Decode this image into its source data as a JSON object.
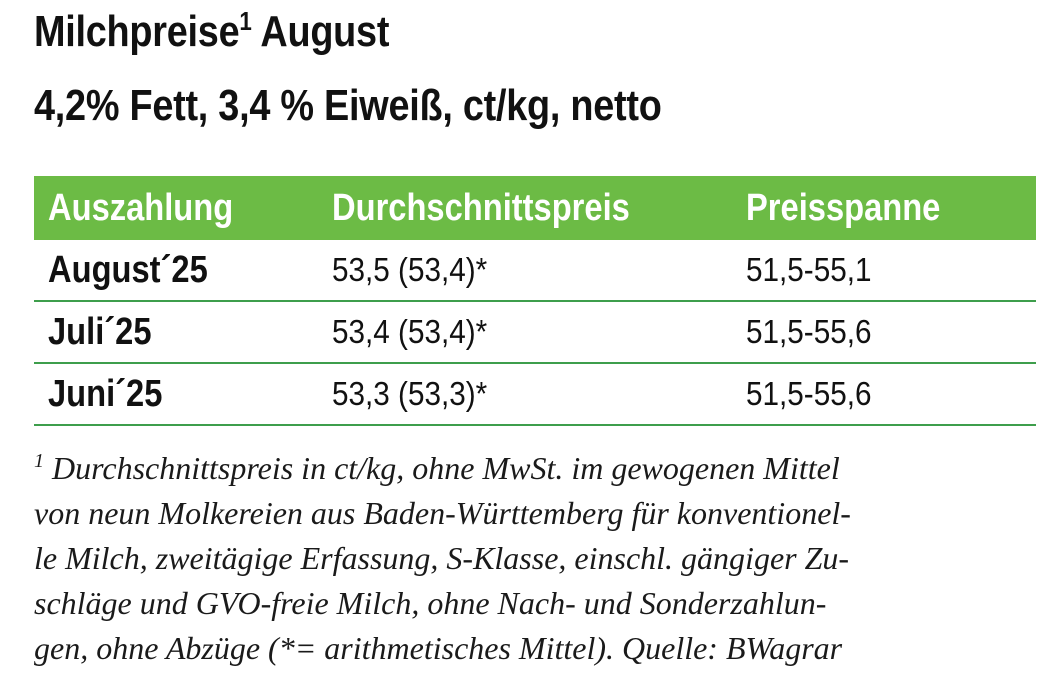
{
  "heading": {
    "line1_main": "Milchpreise",
    "line1_sup": "1",
    "line1_rest": " August",
    "line2": "4,2% Fett, 3,4 % Eiweiß, ct/kg, netto"
  },
  "table": {
    "headers": [
      "Auszahlung",
      "Durchschnittspreis",
      "Preisspanne"
    ],
    "rows": [
      {
        "period": "August´25",
        "average": "53,5 (53,4)*",
        "range": "51,5-55,1"
      },
      {
        "period": "Juli´25",
        "average": "53,4 (53,4)*",
        "range": "51,5-55,6"
      },
      {
        "period": "Juni´25",
        "average": "53,3 (53,3)*",
        "range": "51,5-55,6"
      }
    ]
  },
  "footnote": {
    "marker": "1",
    "lines": [
      " Durchschnittspreis in ct/kg, ohne MwSt. im gewogenen Mittel",
      "von neun Molkereien aus Baden-Württemberg für konventionel-",
      "le Milch, zweitägige Erfassung, S-Klasse, einschl. gängiger Zu-",
      "schläge und GVO-freie Milch, ohne Nach- und Sonderzahlun-",
      "gen, ohne Abzüge (*= arithmetisches Mittel).  Quelle: BWagrar"
    ]
  },
  "colors": {
    "header_bg": "#6cbb45",
    "row_divider": "#3e9e4c"
  }
}
